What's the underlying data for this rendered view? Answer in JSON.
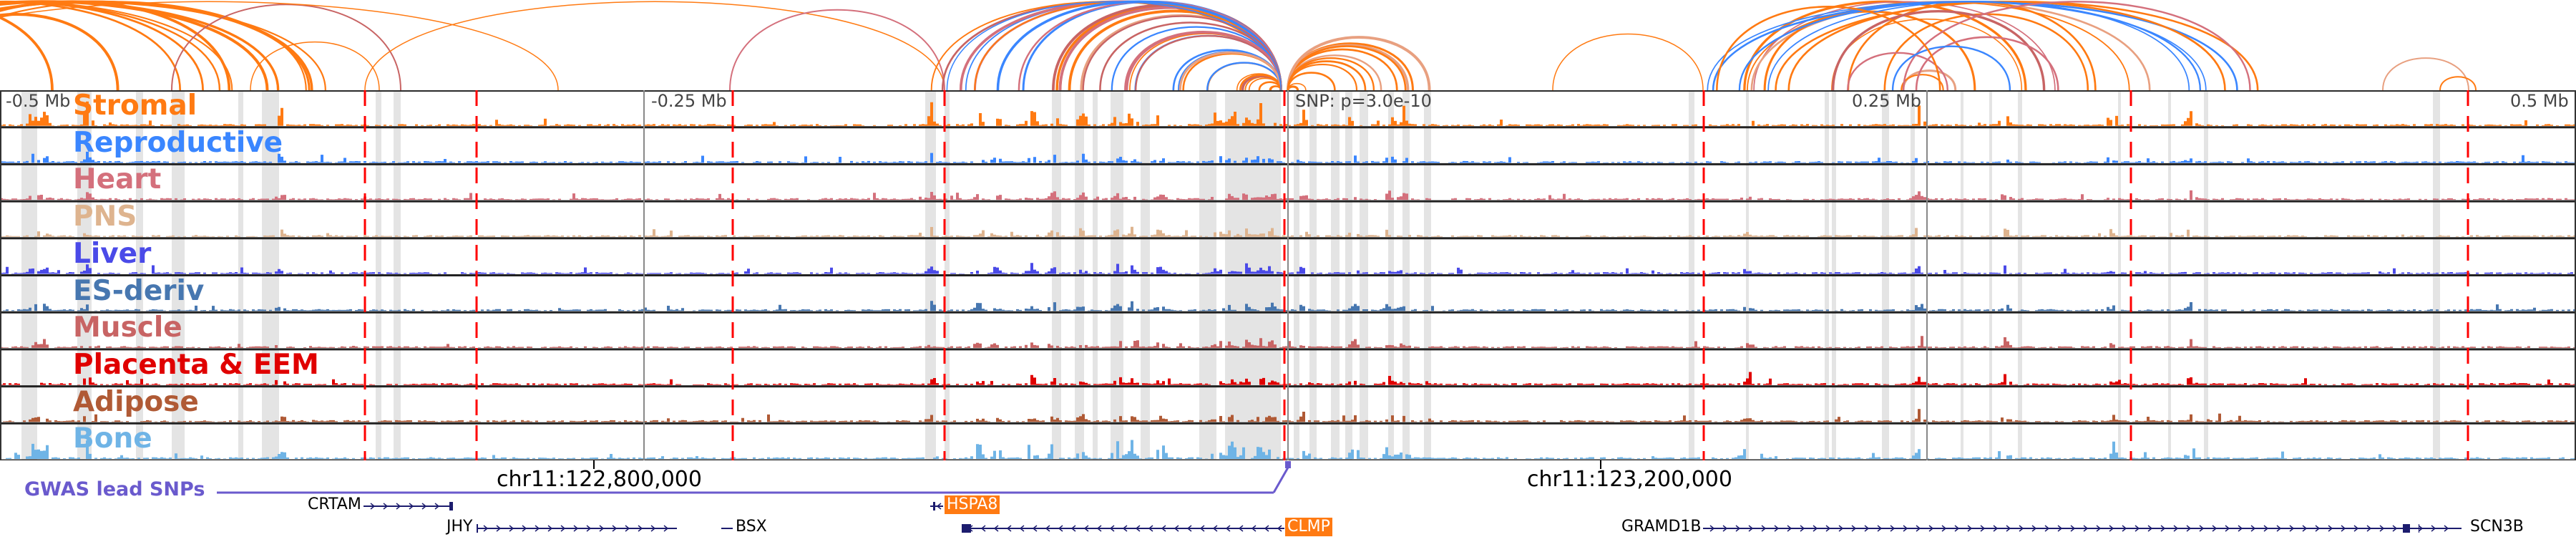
{
  "axis": {
    "ticks": [
      "-0.5 Mb",
      "-0.25 Mb",
      "SNP: p=3.0e-10",
      "0.25 Mb",
      "0.5 Mb"
    ],
    "coords": [
      "chr11:122,800,000",
      "chr11:123,200,000"
    ]
  },
  "tracks": [
    {
      "name": "Stromal",
      "color": "#ff7a12"
    },
    {
      "name": "Reproductive",
      "color": "#3a86ff"
    },
    {
      "name": "Heart",
      "color": "#d4707c"
    },
    {
      "name": "PNS",
      "color": "#deb48f"
    },
    {
      "name": "Liver",
      "color": "#4a4ae8"
    },
    {
      "name": "ES-deriv",
      "color": "#4777b0"
    },
    {
      "name": "Muscle",
      "color": "#c86464"
    },
    {
      "name": "Placenta & EEM",
      "color": "#e00000"
    },
    {
      "name": "Adipose",
      "color": "#b05a35"
    },
    {
      "name": "Bone",
      "color": "#6fb4e6"
    }
  ],
  "gwas": {
    "label": "GWAS lead SNPs",
    "color": "#6a5acd"
  },
  "genes": {
    "crtam": "CRTAM",
    "jhy": "JHY",
    "bsx": "BSX",
    "hspa8": "HSPA8",
    "clmp": "CLMP",
    "gramd1b": "GRAMD1B",
    "scn3b": "SCN3B"
  },
  "colors": {
    "highlight": "#e4e4e4",
    "marker": "#ff0000",
    "gene": "#1c1c6e",
    "gene_highlight": "#ff7a12"
  }
}
